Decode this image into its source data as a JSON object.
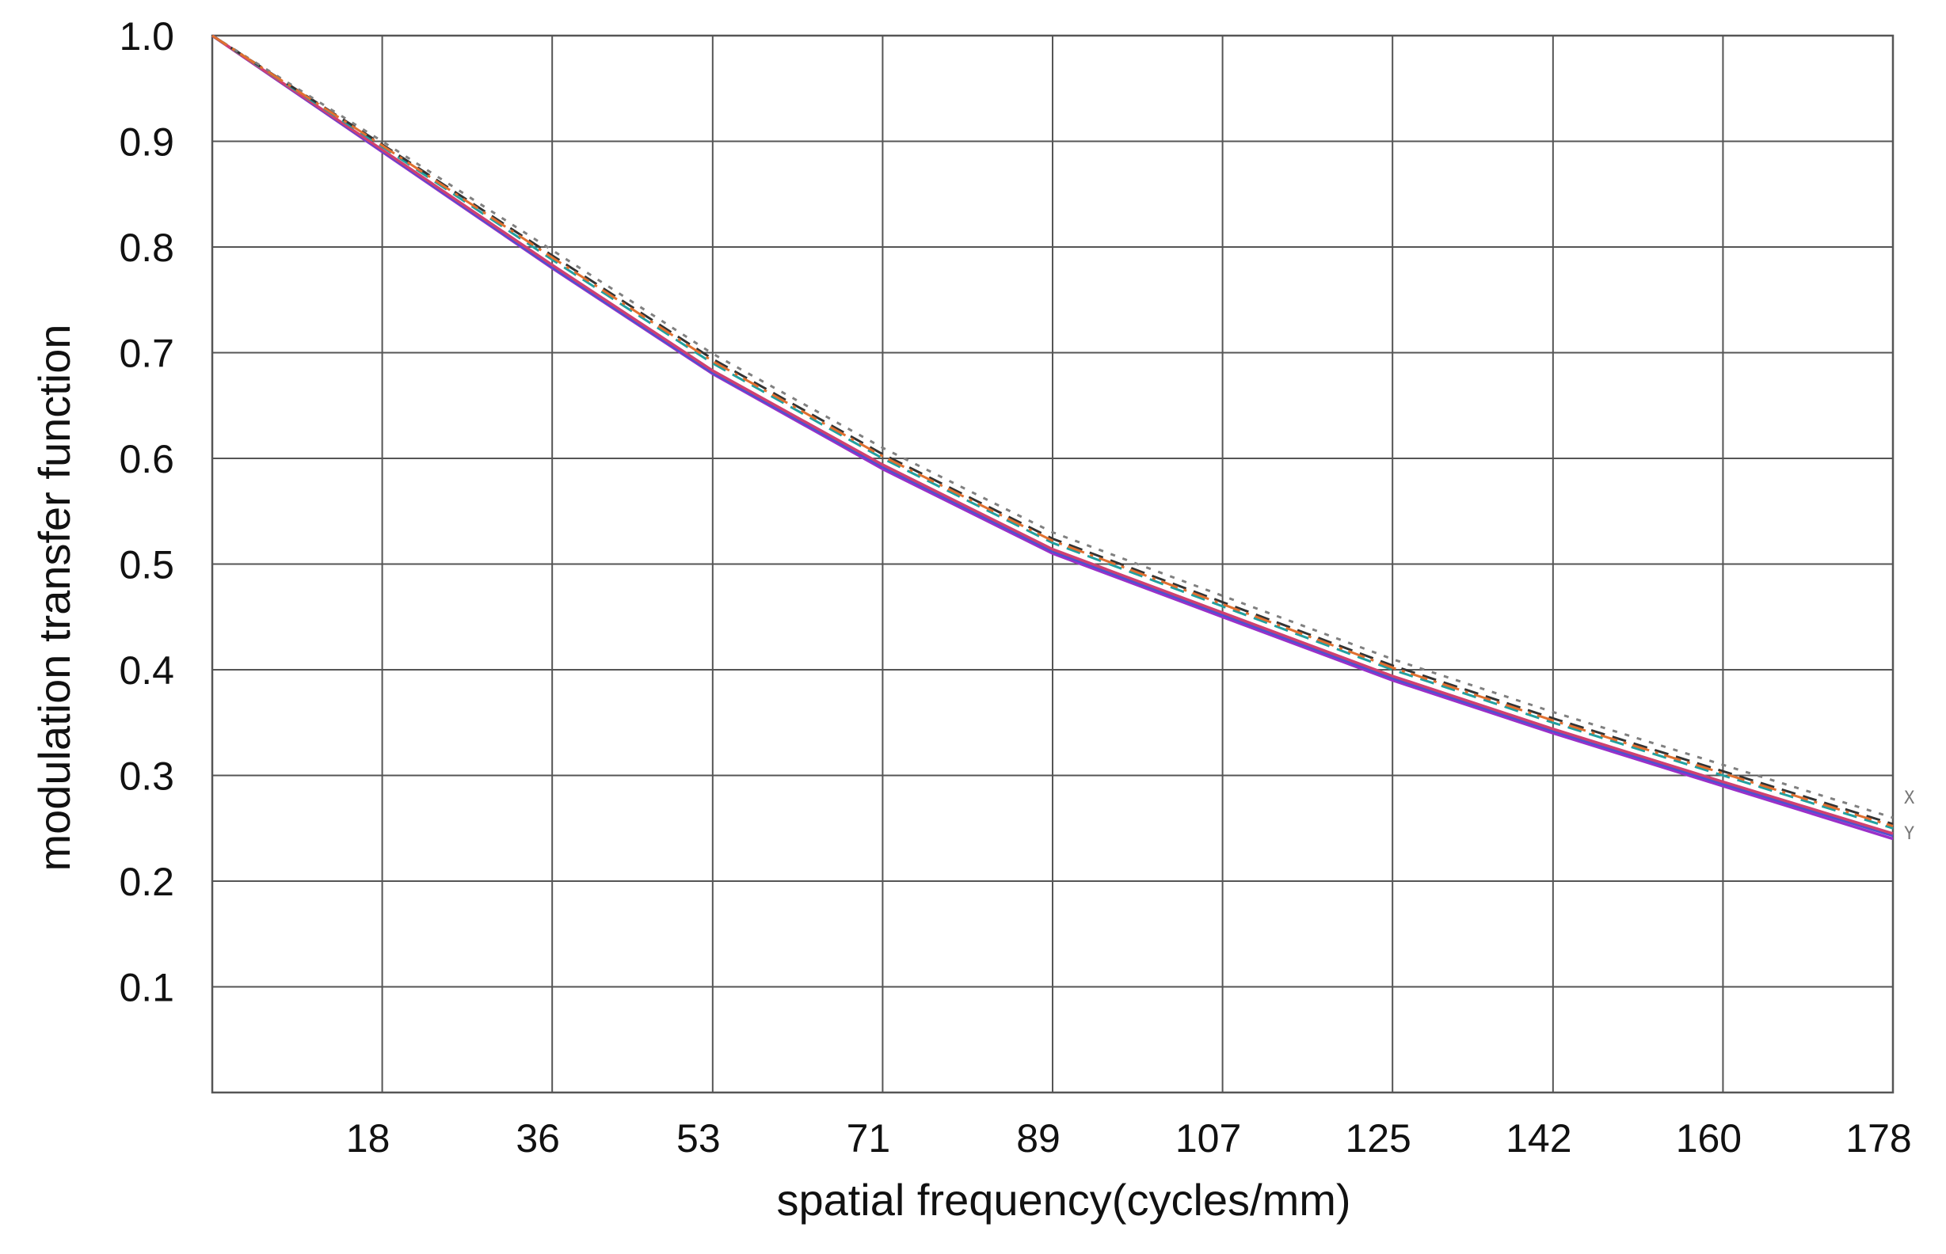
{
  "chart_data": {
    "type": "line",
    "title": "",
    "xlabel": "spatial frequency(cycles/mm)",
    "ylabel": "modulation transfer function",
    "xlim": [
      0,
      178
    ],
    "ylim": [
      0,
      1.0
    ],
    "x_ticks": [
      18,
      36,
      53,
      71,
      89,
      107,
      125,
      142,
      160,
      178
    ],
    "x_tick_labels": [
      "18",
      "36",
      "53",
      "71",
      "89",
      "107",
      "125",
      "142",
      "160",
      "178"
    ],
    "y_ticks": [
      0.1,
      0.2,
      0.3,
      0.4,
      0.5,
      0.6,
      0.7,
      0.8,
      0.9,
      1.0
    ],
    "y_tick_labels": [
      "0.1",
      "0.2",
      "0.3",
      "0.4",
      "0.5",
      "0.6",
      "0.7",
      "0.8",
      "0.9",
      "1.0"
    ],
    "grid": true,
    "x": [
      0,
      18,
      36,
      53,
      71,
      89,
      107,
      125,
      142,
      160,
      178
    ],
    "series": [
      {
        "color": "#9b30c8",
        "dash": "solid",
        "values": [
          1.0,
          0.89,
          0.78,
          0.68,
          0.59,
          0.51,
          0.45,
          0.39,
          0.34,
          0.29,
          0.24
        ]
      },
      {
        "color": "#5050d0",
        "dash": "solid",
        "values": [
          1.0,
          0.891,
          0.781,
          0.681,
          0.592,
          0.512,
          0.452,
          0.392,
          0.342,
          0.292,
          0.243
        ]
      },
      {
        "color": "#d04070",
        "dash": "solid",
        "values": [
          1.0,
          0.892,
          0.783,
          0.683,
          0.594,
          0.514,
          0.454,
          0.394,
          0.344,
          0.294,
          0.245
        ]
      },
      {
        "color": "#20a0a0",
        "dash": "dashed",
        "values": [
          1.0,
          0.895,
          0.788,
          0.69,
          0.6,
          0.52,
          0.46,
          0.4,
          0.35,
          0.3,
          0.25
        ]
      },
      {
        "color": "#333333",
        "dash": "dashed",
        "values": [
          1.0,
          0.897,
          0.792,
          0.694,
          0.604,
          0.524,
          0.464,
          0.404,
          0.354,
          0.304,
          0.254
        ]
      },
      {
        "color": "#808080",
        "dash": "dotted",
        "values": [
          1.0,
          0.9,
          0.797,
          0.699,
          0.61,
          0.53,
          0.47,
          0.41,
          0.36,
          0.31,
          0.26
        ]
      },
      {
        "color": "#e07030",
        "dash": "dashdot",
        "values": [
          1.0,
          0.896,
          0.79,
          0.692,
          0.602,
          0.522,
          0.462,
          0.402,
          0.352,
          0.302,
          0.252
        ]
      }
    ],
    "end_labels": [
      "X",
      "Y"
    ]
  }
}
